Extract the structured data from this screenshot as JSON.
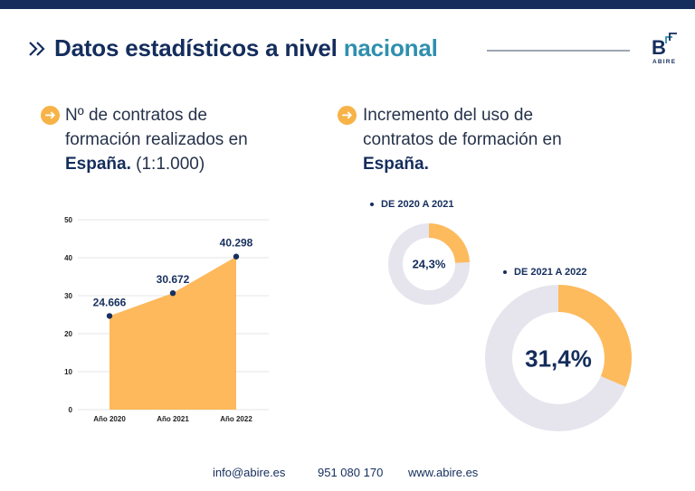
{
  "header": {
    "title_main": "Datos estadísticos a nivel ",
    "title_accent": "nacional",
    "logo_letter": "B",
    "logo_text": "ABIRE"
  },
  "left_section": {
    "line1": "Nº de contratos de",
    "line2": "formación realizados en",
    "line3_bold": "España.",
    "line3_rest": " (1:1.000)"
  },
  "right_section": {
    "line1": "Incremento del uso de",
    "line2": "contratos de formación en",
    "line3_bold": "España."
  },
  "chart_data": [
    {
      "type": "area",
      "categories": [
        "Año 2020",
        "Año 2021",
        "Año 2022"
      ],
      "values": [
        24.666,
        30.672,
        40.298
      ],
      "data_labels": [
        "24.666",
        "30.672",
        "40.298"
      ],
      "ylim": [
        0,
        50
      ],
      "yticks": [
        0,
        10,
        20,
        30,
        40,
        50
      ],
      "grid": true,
      "colors": {
        "fill": "#fdb95b",
        "point": "#17305e",
        "grid": "#e6e6e6"
      }
    },
    {
      "type": "pie",
      "style": "donut",
      "title": "DE 2020 A 2021",
      "value": 24.3,
      "center_label": "24,3%",
      "colors": {
        "highlight": "#fdbb5d",
        "rest": "#e6e5ee"
      }
    },
    {
      "type": "pie",
      "style": "donut",
      "title": "DE 2021 A 2022",
      "value": 31.4,
      "center_label": "31,4%",
      "colors": {
        "highlight": "#fdbb5d",
        "rest": "#e6e5ee"
      }
    }
  ],
  "footer": {
    "email": "info@abire.es",
    "phone": "951 080 170",
    "web": "www.abire.es"
  }
}
